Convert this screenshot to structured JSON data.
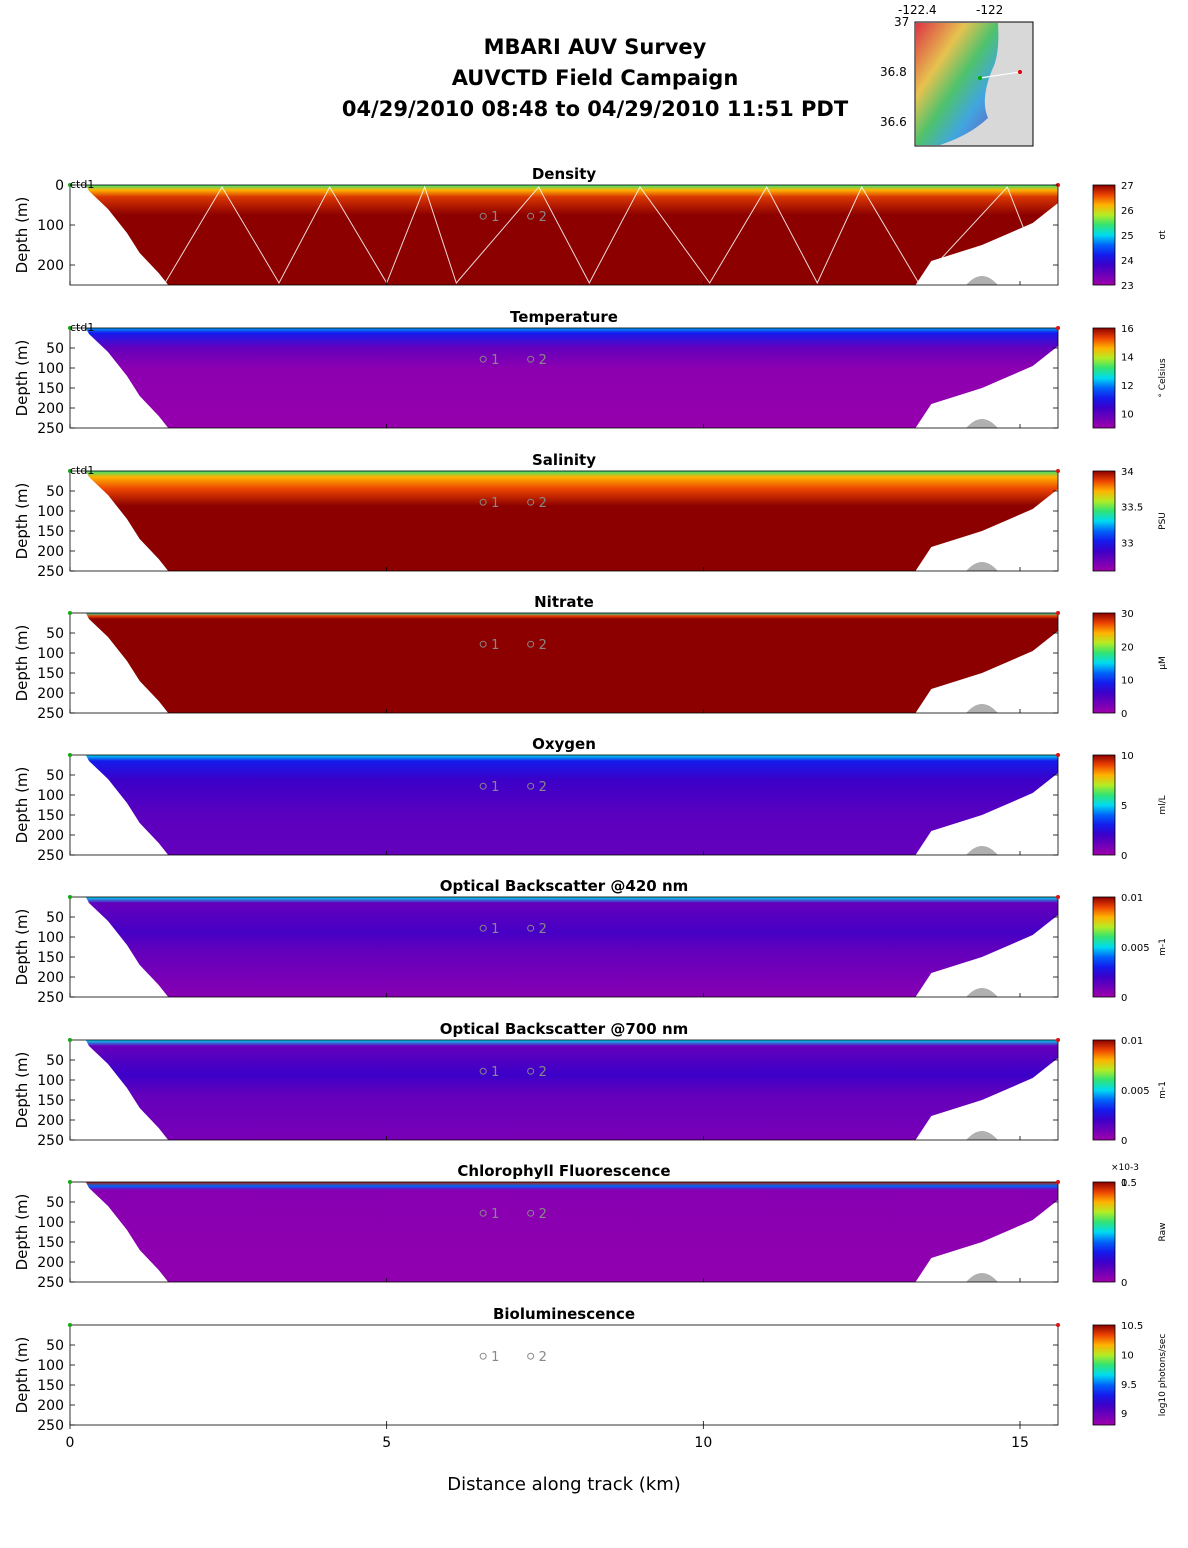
{
  "header": {
    "line1": "MBARI AUV Survey",
    "line2": "AUVCTD Field Campaign",
    "line3": "04/29/2010 08:48  to 04/29/2010 11:51 PDT"
  },
  "inset_map": {
    "lon_ticks": [
      "-122.4",
      "-122"
    ],
    "lat_ticks": [
      "37",
      "36.8",
      "36.6"
    ]
  },
  "colors": {
    "land": "#d8d8d8",
    "bathy": "#b0b0b0",
    "track": "#ffffff"
  },
  "chart_data": [
    {
      "type": "heatmap",
      "title": "Density",
      "ylabel": "Depth (m)",
      "xlabel": "Distance along track (km)",
      "xlim": [
        0,
        15.6
      ],
      "ylim": [
        250,
        0
      ],
      "yticks": [
        "0",
        "100",
        "200"
      ],
      "colorbar": {
        "label": "σt",
        "ticks": [
          "27",
          "26",
          "25",
          "24",
          "23"
        ],
        "range": [
          23,
          27
        ]
      },
      "track_label": "ctd1",
      "station_labels": [
        "1",
        "2"
      ],
      "show_track": true
    },
    {
      "type": "heatmap",
      "title": "Temperature",
      "ylabel": "Depth (m)",
      "xlim": [
        0,
        15.6
      ],
      "ylim": [
        250,
        0
      ],
      "yticks": [
        "50",
        "100",
        "150",
        "200",
        "250"
      ],
      "colorbar": {
        "label": "° Celsius",
        "ticks": [
          "16",
          "14",
          "12",
          "10"
        ],
        "range": [
          9,
          16
        ]
      },
      "track_label": "ctd1",
      "station_labels": [
        "1",
        "2"
      ]
    },
    {
      "type": "heatmap",
      "title": "Salinity",
      "ylabel": "Depth (m)",
      "xlim": [
        0,
        15.6
      ],
      "ylim": [
        250,
        0
      ],
      "yticks": [
        "50",
        "100",
        "150",
        "200",
        "250"
      ],
      "colorbar": {
        "label": "PSU",
        "ticks": [
          "34",
          "33.5",
          "33"
        ],
        "range": [
          32.6,
          34
        ]
      },
      "track_label": "ctd1",
      "station_labels": [
        "1",
        "2"
      ]
    },
    {
      "type": "heatmap",
      "title": "Nitrate",
      "ylabel": "Depth (m)",
      "xlim": [
        0,
        15.6
      ],
      "ylim": [
        250,
        0
      ],
      "yticks": [
        "50",
        "100",
        "150",
        "200",
        "250"
      ],
      "colorbar": {
        "label": "μM",
        "ticks": [
          "30",
          "20",
          "10",
          "0"
        ],
        "range": [
          0,
          30
        ]
      },
      "station_labels": [
        "1",
        "2"
      ]
    },
    {
      "type": "heatmap",
      "title": "Oxygen",
      "ylabel": "Depth (m)",
      "xlim": [
        0,
        15.6
      ],
      "ylim": [
        250,
        0
      ],
      "yticks": [
        "50",
        "100",
        "150",
        "200",
        "250"
      ],
      "colorbar": {
        "label": "ml/L",
        "ticks": [
          "10",
          "5",
          "0"
        ],
        "range": [
          0,
          10
        ]
      },
      "station_labels": [
        "1",
        "2"
      ]
    },
    {
      "type": "heatmap",
      "title": "Optical Backscatter @420 nm",
      "ylabel": "Depth (m)",
      "xlim": [
        0,
        15.6
      ],
      "ylim": [
        250,
        0
      ],
      "yticks": [
        "50",
        "100",
        "150",
        "200",
        "250"
      ],
      "colorbar": {
        "label": "m-1",
        "ticks": [
          "0.01",
          "0.005",
          "0"
        ],
        "range": [
          0,
          0.01
        ]
      },
      "station_labels": [
        "1",
        "2"
      ]
    },
    {
      "type": "heatmap",
      "title": "Optical Backscatter @700 nm",
      "ylabel": "Depth (m)",
      "xlim": [
        0,
        15.6
      ],
      "ylim": [
        250,
        0
      ],
      "yticks": [
        "50",
        "100",
        "150",
        "200",
        "250"
      ],
      "colorbar": {
        "label": "m-1",
        "ticks": [
          "0.01",
          "0.005",
          "0"
        ],
        "range": [
          0,
          0.01
        ]
      },
      "station_labels": [
        "1",
        "2"
      ]
    },
    {
      "type": "heatmap",
      "title": "Chlorophyll Fluorescence",
      "ylabel": "Depth (m)",
      "xlim": [
        0,
        15.6
      ],
      "ylim": [
        250,
        0
      ],
      "yticks": [
        "50",
        "100",
        "150",
        "200",
        "250"
      ],
      "colorbar": {
        "label": "Raw",
        "ticks": [
          "1",
          "0.5",
          "0"
        ],
        "range": [
          0,
          0.001
        ],
        "exponent": "×10-3"
      },
      "station_labels": [
        "1",
        "2"
      ]
    },
    {
      "type": "heatmap",
      "title": "Bioluminescence",
      "ylabel": "Depth (m)",
      "xlim": [
        0,
        15.6
      ],
      "ylim": [
        250,
        0
      ],
      "yticks": [
        "50",
        "100",
        "150",
        "200",
        "250"
      ],
      "xticks": [
        "0",
        "5",
        "10",
        "15"
      ],
      "colorbar": {
        "label": "log10 photons/sec",
        "ticks": [
          "10.5",
          "10",
          "9.5",
          "9"
        ],
        "range": [
          8.8,
          10.5
        ]
      },
      "station_labels": [
        "1",
        "2"
      ],
      "empty": true
    }
  ],
  "x_axis_label": "Distance along track (km)"
}
